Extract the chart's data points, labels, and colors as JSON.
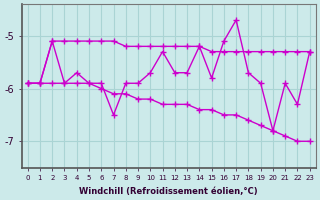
{
  "xlabel": "Windchill (Refroidissement éolien,°C)",
  "ylabel": "",
  "background_color": "#cceaea",
  "grid_color": "#aad4d4",
  "line_color": "#cc00cc",
  "x_values": [
    0,
    1,
    2,
    3,
    4,
    5,
    6,
    7,
    8,
    9,
    10,
    11,
    12,
    13,
    14,
    15,
    16,
    17,
    18,
    19,
    20,
    21,
    22,
    23
  ],
  "y_main": [
    -5.9,
    -5.9,
    -5.1,
    -5.9,
    -5.7,
    -5.9,
    -5.9,
    -6.5,
    -5.9,
    -5.9,
    -5.7,
    -5.3,
    -5.7,
    -5.7,
    -5.2,
    -5.8,
    -5.1,
    -4.7,
    -5.7,
    -5.9,
    -6.8,
    -5.9,
    -6.3,
    -5.3
  ],
  "y_upper": [
    -5.9,
    -5.9,
    -5.1,
    -5.1,
    -5.1,
    -5.1,
    -5.1,
    -5.1,
    -5.2,
    -5.2,
    -5.2,
    -5.2,
    -5.2,
    -5.2,
    -5.2,
    -5.3,
    -5.3,
    -5.3,
    -5.3,
    -5.3,
    -5.3,
    -5.3,
    -5.3,
    -5.3
  ],
  "y_lower": [
    -5.9,
    -5.9,
    -5.9,
    -5.9,
    -5.9,
    -5.9,
    -6.0,
    -6.1,
    -6.1,
    -6.2,
    -6.2,
    -6.3,
    -6.3,
    -6.3,
    -6.4,
    -6.4,
    -6.5,
    -6.5,
    -6.6,
    -6.7,
    -6.8,
    -6.9,
    -7.0,
    -7.0
  ],
  "ylim": [
    -7.5,
    -4.4
  ],
  "yticks": [
    -7,
    -6,
    -5
  ],
  "xlim": [
    -0.5,
    23.5
  ],
  "xticks": [
    0,
    1,
    2,
    3,
    4,
    5,
    6,
    7,
    8,
    9,
    10,
    11,
    12,
    13,
    14,
    15,
    16,
    17,
    18,
    19,
    20,
    21,
    22,
    23
  ]
}
